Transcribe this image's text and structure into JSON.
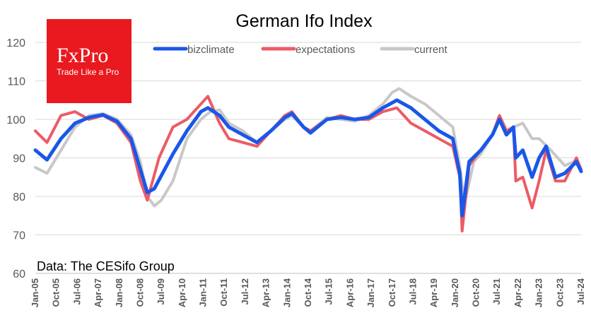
{
  "chart_data": {
    "type": "line",
    "title": "German Ifo Index",
    "source_note": "Data: The CESifo Group",
    "logo": {
      "name": "FxPro",
      "tagline": "Trade Like a Pro"
    },
    "ylim": [
      60,
      120
    ],
    "yticks": [
      60,
      70,
      80,
      90,
      100,
      110,
      120
    ],
    "grid": true,
    "legend_position": "top-center",
    "x_start": "2005-01",
    "x_end": "2024-07",
    "x_tick_labels": [
      "Jan-05",
      "Oct-05",
      "Jul-06",
      "Apr-07",
      "Jan-08",
      "Oct-08",
      "Jul-09",
      "Apr-10",
      "Jan-11",
      "Oct-11",
      "Jul-12",
      "Apr-13",
      "Jan-14",
      "Oct-14",
      "Jul-15",
      "Apr-16",
      "Jan-17",
      "Oct-17",
      "Jul-18",
      "Apr-19",
      "Jan-20",
      "Oct-20",
      "Jul-21",
      "Apr-22",
      "Jan-23",
      "Oct-23",
      "Jul-24"
    ],
    "series": [
      {
        "name": "current",
        "color": "#c8c8c8",
        "points": [
          [
            "2005-01",
            87.5
          ],
          [
            "2005-06",
            86
          ],
          [
            "2005-12",
            92
          ],
          [
            "2006-06",
            98
          ],
          [
            "2006-12",
            101
          ],
          [
            "2007-06",
            101.5
          ],
          [
            "2007-12",
            100
          ],
          [
            "2008-06",
            96
          ],
          [
            "2008-10",
            89
          ],
          [
            "2009-01",
            80
          ],
          [
            "2009-04",
            77.5
          ],
          [
            "2009-07",
            79
          ],
          [
            "2009-12",
            84
          ],
          [
            "2010-06",
            95
          ],
          [
            "2010-12",
            100
          ],
          [
            "2011-04",
            102
          ],
          [
            "2011-08",
            102.5
          ],
          [
            "2011-12",
            99
          ],
          [
            "2012-06",
            97
          ],
          [
            "2012-12",
            94
          ],
          [
            "2013-06",
            97
          ],
          [
            "2013-12",
            100
          ],
          [
            "2014-03",
            101
          ],
          [
            "2014-08",
            98
          ],
          [
            "2014-11",
            97
          ],
          [
            "2015-06",
            100.5
          ],
          [
            "2015-12",
            100
          ],
          [
            "2016-06",
            99.5
          ],
          [
            "2016-12",
            101
          ],
          [
            "2017-06",
            104
          ],
          [
            "2017-10",
            107
          ],
          [
            "2018-01",
            108
          ],
          [
            "2018-06",
            106
          ],
          [
            "2018-12",
            104
          ],
          [
            "2019-06",
            101
          ],
          [
            "2019-12",
            98
          ],
          [
            "2020-03",
            88
          ],
          [
            "2020-05",
            78
          ],
          [
            "2020-09",
            89
          ],
          [
            "2020-12",
            91
          ],
          [
            "2021-05",
            96
          ],
          [
            "2021-08",
            101
          ],
          [
            "2021-11",
            97
          ],
          [
            "2022-02",
            98
          ],
          [
            "2022-06",
            99
          ],
          [
            "2022-10",
            95
          ],
          [
            "2023-01",
            95
          ],
          [
            "2023-06",
            92
          ],
          [
            "2023-12",
            88
          ],
          [
            "2024-04",
            89
          ],
          [
            "2024-07",
            87
          ]
        ]
      },
      {
        "name": "expectations",
        "color": "#ec5b66",
        "points": [
          [
            "2005-01",
            97
          ],
          [
            "2005-06",
            94
          ],
          [
            "2005-12",
            101
          ],
          [
            "2006-06",
            102
          ],
          [
            "2006-12",
            100
          ],
          [
            "2007-06",
            101
          ],
          [
            "2007-12",
            99
          ],
          [
            "2008-06",
            94
          ],
          [
            "2008-10",
            84
          ],
          [
            "2009-01",
            79
          ],
          [
            "2009-06",
            90
          ],
          [
            "2009-12",
            98
          ],
          [
            "2010-06",
            100
          ],
          [
            "2010-12",
            104
          ],
          [
            "2011-03",
            106
          ],
          [
            "2011-08",
            99
          ],
          [
            "2011-12",
            95
          ],
          [
            "2012-06",
            94
          ],
          [
            "2012-12",
            93
          ],
          [
            "2013-06",
            97
          ],
          [
            "2013-12",
            101
          ],
          [
            "2014-03",
            102
          ],
          [
            "2014-08",
            98
          ],
          [
            "2014-11",
            97
          ],
          [
            "2015-06",
            100
          ],
          [
            "2015-12",
            101
          ],
          [
            "2016-06",
            100
          ],
          [
            "2016-12",
            100
          ],
          [
            "2017-06",
            102
          ],
          [
            "2017-12",
            103
          ],
          [
            "2018-06",
            99
          ],
          [
            "2018-12",
            97
          ],
          [
            "2019-06",
            95
          ],
          [
            "2019-12",
            93
          ],
          [
            "2020-03",
            85
          ],
          [
            "2020-04",
            71
          ],
          [
            "2020-07",
            88
          ],
          [
            "2020-12",
            92
          ],
          [
            "2021-05",
            96
          ],
          [
            "2021-08",
            101
          ],
          [
            "2021-11",
            97
          ],
          [
            "2022-02",
            98
          ],
          [
            "2022-03",
            84
          ],
          [
            "2022-06",
            85
          ],
          [
            "2022-10",
            77
          ],
          [
            "2023-01",
            84
          ],
          [
            "2023-04",
            92
          ],
          [
            "2023-08",
            84
          ],
          [
            "2023-12",
            84
          ],
          [
            "2024-05",
            90
          ],
          [
            "2024-07",
            87
          ]
        ]
      },
      {
        "name": "bizclimate",
        "color": "#1a57e8",
        "points": [
          [
            "2005-01",
            92
          ],
          [
            "2005-06",
            89.5
          ],
          [
            "2005-12",
            95
          ],
          [
            "2006-06",
            99
          ],
          [
            "2006-12",
            100.5
          ],
          [
            "2007-06",
            101.2
          ],
          [
            "2007-12",
            99.5
          ],
          [
            "2008-06",
            95
          ],
          [
            "2008-10",
            87
          ],
          [
            "2009-01",
            81
          ],
          [
            "2009-04",
            82
          ],
          [
            "2009-12",
            91
          ],
          [
            "2010-06",
            97
          ],
          [
            "2010-12",
            102
          ],
          [
            "2011-03",
            103
          ],
          [
            "2011-08",
            101
          ],
          [
            "2011-12",
            98
          ],
          [
            "2012-06",
            96
          ],
          [
            "2012-12",
            94
          ],
          [
            "2013-06",
            97
          ],
          [
            "2013-12",
            100.5
          ],
          [
            "2014-03",
            101.5
          ],
          [
            "2014-08",
            98
          ],
          [
            "2014-11",
            96.5
          ],
          [
            "2015-06",
            100
          ],
          [
            "2015-12",
            100.5
          ],
          [
            "2016-06",
            100
          ],
          [
            "2016-12",
            100.5
          ],
          [
            "2017-06",
            103
          ],
          [
            "2017-12",
            105
          ],
          [
            "2018-06",
            103
          ],
          [
            "2018-12",
            100
          ],
          [
            "2019-06",
            97
          ],
          [
            "2019-12",
            95
          ],
          [
            "2020-03",
            86
          ],
          [
            "2020-04",
            75
          ],
          [
            "2020-07",
            89
          ],
          [
            "2020-12",
            92
          ],
          [
            "2021-05",
            96
          ],
          [
            "2021-08",
            100
          ],
          [
            "2021-11",
            96
          ],
          [
            "2022-02",
            98
          ],
          [
            "2022-03",
            90
          ],
          [
            "2022-06",
            92
          ],
          [
            "2022-10",
            85
          ],
          [
            "2023-01",
            90
          ],
          [
            "2023-04",
            93
          ],
          [
            "2023-08",
            85
          ],
          [
            "2023-12",
            86
          ],
          [
            "2024-05",
            89
          ],
          [
            "2024-07",
            86.5
          ]
        ]
      }
    ],
    "legend_order": [
      "bizclimate",
      "expectations",
      "current"
    ]
  }
}
